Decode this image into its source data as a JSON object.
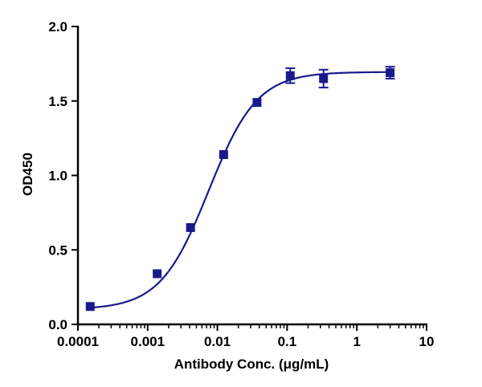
{
  "chart_data": {
    "type": "scatter",
    "title": "",
    "xlabel": "Antibody Conc. (μg/mL)",
    "ylabel": "OD450",
    "xscale": "log",
    "xlim": [
      0.0001,
      10
    ],
    "ylim": [
      0,
      2.0
    ],
    "x_ticks": [
      0.0001,
      0.001,
      0.01,
      0.1,
      1,
      10
    ],
    "x_tick_labels": [
      "0.0001",
      "0.001",
      "0.01",
      "0.1",
      "1",
      "10"
    ],
    "y_ticks": [
      0,
      0.5,
      1.0,
      1.5,
      2.0
    ],
    "y_tick_labels": [
      "0.0",
      "0.5",
      "1.0",
      "1.5",
      "2.0"
    ],
    "grid": false,
    "legend": "none",
    "marker": "square",
    "color": "#1a1a8c",
    "series": [
      {
        "x": [
          0.00015,
          0.00137,
          0.00412,
          0.0123,
          0.037,
          0.111,
          0.333,
          3.0
        ],
        "y": [
          0.12,
          0.34,
          0.65,
          1.14,
          1.49,
          1.67,
          1.65,
          1.69
        ],
        "error": [
          0.0,
          0.0,
          0.0,
          0.0,
          0.0,
          0.05,
          0.06,
          0.04
        ]
      }
    ],
    "fit": {
      "model": "4PL",
      "bottom": 0.1,
      "top": 1.695,
      "ec50": 0.0075,
      "hill": 1.25
    }
  }
}
